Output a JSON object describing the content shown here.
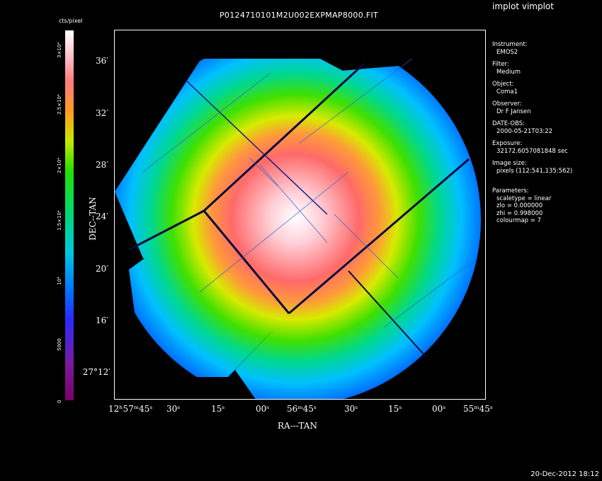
{
  "app_title": "implot vimplot",
  "plot_title": "P0124710101M2U002EXPMAP8000.FIT",
  "date_stamp": "20-Dec-2012 18:12",
  "colorbar": {
    "unit": "cts/pixel",
    "ticks": [
      "0",
      "5000",
      "10⁴",
      "1.5×10⁴",
      "2×10⁴",
      "2.5×10⁴",
      "3×10⁴"
    ],
    "colormap": "rainbow (colourmap 7)"
  },
  "axes": {
    "xlabel": "RA---TAN",
    "ylabel": "DEC--TAN",
    "xticks": [
      "12ʰ57ᵐ45ˢ",
      "30ˢ",
      "15ˢ",
      "00ˢ",
      "56ᵐ45ˢ",
      "30ˢ",
      "15ˢ",
      "00ˢ",
      "55ᵐ45ˢ"
    ],
    "yticks": [
      "36′",
      "32′",
      "28′",
      "24′",
      "20′",
      "16′",
      "27°12′"
    ]
  },
  "metadata": [
    {
      "label": "Instrument:",
      "value": "EMOS2"
    },
    {
      "label": "Filter:",
      "value": "Medium"
    },
    {
      "label": "Object:",
      "value": "Coma1"
    },
    {
      "label": "Observer:",
      "value": "Dr F Jansen"
    },
    {
      "label": "DATE-OBS:",
      "value": "2000-05-21T03:22"
    },
    {
      "label": "Exposure:",
      "value": "32172.6057081848 sec"
    },
    {
      "label": "Image size:",
      "value": "pixels (112:541,135:562)"
    }
  ],
  "parameters": {
    "label": "Parameters:",
    "lines": [
      "scaletype = linear",
      "zlo = 0.000000",
      "zhi = 0.998000",
      "colourmap =   7"
    ]
  },
  "colors": {
    "center": "#ffffff",
    "mid_red": "#ff7070",
    "yellow_green": "#c8e800",
    "green": "#10d850",
    "cyan": "#00d0e0",
    "blue_edge": "#0a3cff",
    "gap_line": "#0a0a40"
  }
}
